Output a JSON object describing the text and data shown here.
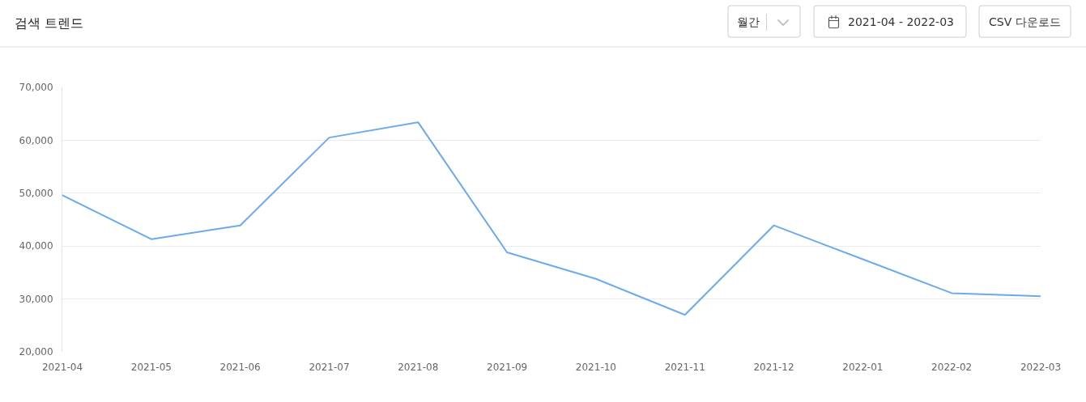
{
  "chart_data": {
    "type": "line",
    "title": "검색 트렌드",
    "annotations": [
      "월간",
      "2021-04 - 2022-03",
      "CSV 다운로드"
    ],
    "categories": [
      "2021-04",
      "2021-05",
      "2021-06",
      "2021-07",
      "2021-08",
      "2021-09",
      "2021-10",
      "2021-11",
      "2021-12",
      "2022-01",
      "2022-02",
      "2022-03"
    ],
    "values": [
      49600,
      41300,
      43900,
      60500,
      63400,
      38800,
      33800,
      27000,
      43900,
      37500,
      31100,
      30500
    ],
    "color": "#6aaaf0",
    "ylim": [
      20000,
      70000
    ],
    "yticks": [
      {
        "value": 20000,
        "label": "20,000"
      },
      {
        "value": 30000,
        "label": "30,000"
      },
      {
        "value": 40000,
        "label": "40,000"
      },
      {
        "value": 50000,
        "label": "50,000"
      },
      {
        "value": 60000,
        "label": "60,000"
      },
      {
        "value": 70000,
        "label": "70,000"
      }
    ],
    "grid": "y"
  }
}
